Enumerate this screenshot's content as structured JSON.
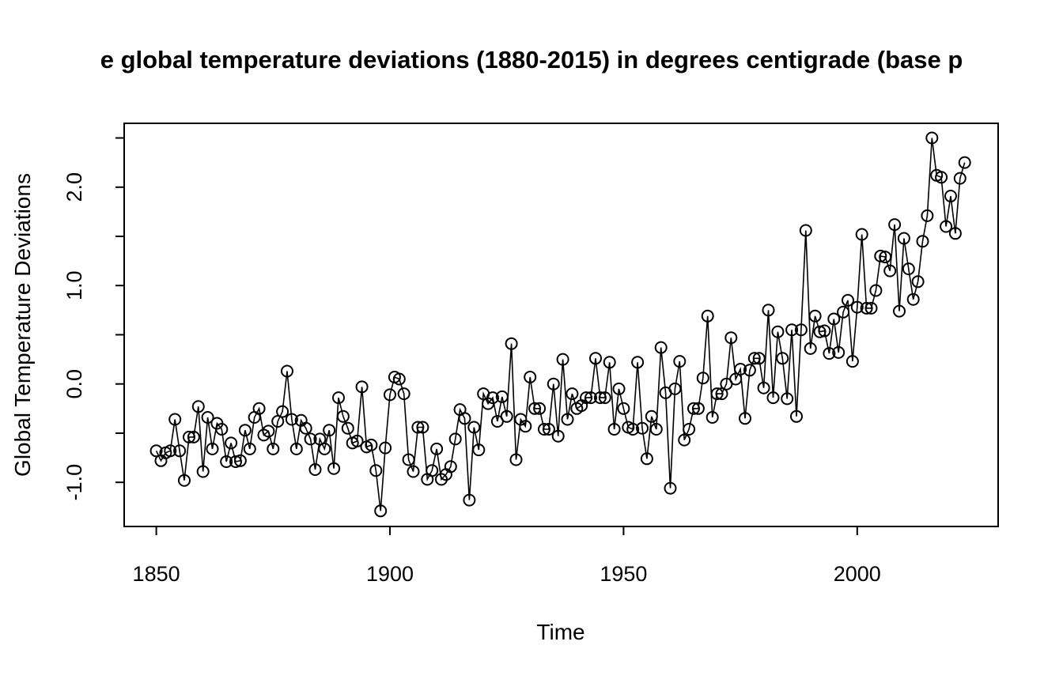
{
  "title": "e global temperature deviations (1880-2015) in degrees centigrade (base p",
  "colors": {
    "line": "#000000",
    "background": "#ffffff",
    "text": "#000000"
  },
  "chart_data": {
    "type": "line",
    "marker": "open-circle",
    "title": "e global temperature deviations (1880-2015) in degrees centigrade (base p",
    "xlabel": "Time",
    "ylabel": "Global Temperature Deviations",
    "grid": false,
    "legend": "none",
    "x_start": 1850,
    "x_step": 1,
    "x_end": 2023,
    "xlim": [
      1843,
      2030
    ],
    "ylim": [
      -1.35,
      2.6
    ],
    "x_tick_values": [
      1850,
      1900,
      1950,
      2000
    ],
    "x_tick_labels": [
      "1850",
      "1900",
      "1950",
      "2000"
    ],
    "y_tick_values": [
      -1.0,
      -0.5,
      0.0,
      0.5,
      1.0,
      1.5,
      2.0,
      2.5
    ],
    "y_tick_labels": [
      "-1.0",
      "",
      "0.0",
      "",
      "1.0",
      "",
      "2.0",
      ""
    ],
    "values": [
      -0.68,
      -0.78,
      -0.7,
      -0.68,
      -0.36,
      -0.68,
      -0.98,
      -0.54,
      -0.54,
      -0.23,
      -0.89,
      -0.34,
      -0.66,
      -0.4,
      -0.46,
      -0.79,
      -0.6,
      -0.79,
      -0.78,
      -0.47,
      -0.66,
      -0.34,
      -0.25,
      -0.52,
      -0.48,
      -0.66,
      -0.38,
      -0.28,
      0.13,
      -0.36,
      -0.66,
      -0.37,
      -0.45,
      -0.56,
      -0.87,
      -0.56,
      -0.66,
      -0.47,
      -0.86,
      -0.14,
      -0.33,
      -0.45,
      -0.6,
      -0.58,
      -0.03,
      -0.64,
      -0.62,
      -0.88,
      -1.29,
      -0.65,
      -0.11,
      0.07,
      0.05,
      -0.1,
      -0.77,
      -0.89,
      -0.44,
      -0.44,
      -0.97,
      -0.88,
      -0.66,
      -0.97,
      -0.92,
      -0.84,
      -0.56,
      -0.26,
      -0.35,
      -1.18,
      -0.44,
      -0.67,
      -0.1,
      -0.2,
      -0.14,
      -0.38,
      -0.13,
      -0.33,
      0.41,
      -0.77,
      -0.36,
      -0.43,
      0.07,
      -0.25,
      -0.25,
      -0.46,
      -0.46,
      0.0,
      -0.53,
      0.25,
      -0.36,
      -0.1,
      -0.25,
      -0.22,
      -0.14,
      -0.14,
      0.26,
      -0.14,
      -0.14,
      0.22,
      -0.46,
      -0.05,
      -0.25,
      -0.44,
      -0.46,
      0.22,
      -0.45,
      -0.76,
      -0.33,
      -0.46,
      0.37,
      -0.09,
      -1.06,
      -0.05,
      0.23,
      -0.57,
      -0.46,
      -0.25,
      -0.25,
      0.06,
      0.69,
      -0.34,
      -0.1,
      -0.1,
      0.0,
      0.47,
      0.05,
      0.15,
      -0.35,
      0.14,
      0.26,
      0.26,
      -0.04,
      0.75,
      -0.14,
      0.53,
      0.26,
      -0.15,
      0.55,
      -0.33,
      0.55,
      1.56,
      0.36,
      0.69,
      0.53,
      0.54,
      0.31,
      0.66,
      0.32,
      0.73,
      0.85,
      0.23,
      0.78,
      1.52,
      0.77,
      0.77,
      0.95,
      1.3,
      1.29,
      1.15,
      1.62,
      0.74,
      1.48,
      1.17,
      0.86,
      1.04,
      1.45,
      1.71,
      2.5,
      2.12,
      2.1,
      1.6,
      1.91,
      1.53,
      2.09,
      2.25
    ]
  }
}
